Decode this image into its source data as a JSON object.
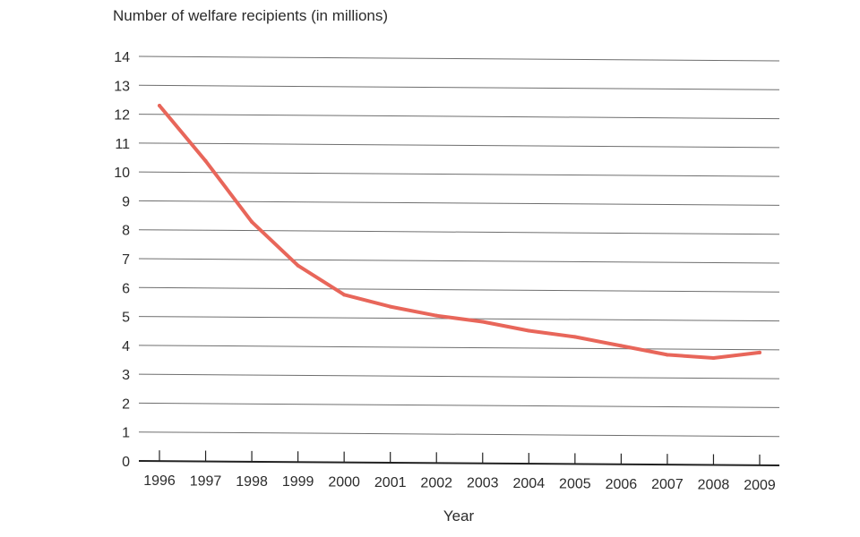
{
  "chart_data": {
    "type": "line",
    "title": "",
    "ylabel": "Number of welfare recipients (in millions)",
    "xlabel": "Year",
    "categories": [
      "1996",
      "1997",
      "1998",
      "1999",
      "2000",
      "2001",
      "2002",
      "2003",
      "2004",
      "2005",
      "2006",
      "2007",
      "2008",
      "2009"
    ],
    "yticks": [
      "0",
      "1",
      "2",
      "3",
      "4",
      "5",
      "6",
      "7",
      "8",
      "9",
      "10",
      "11",
      "12",
      "13",
      "14"
    ],
    "ylim": [
      0,
      14
    ],
    "grid": true,
    "legend": "none",
    "series": [
      {
        "color": "#e8665a",
        "values": [
          12.3,
          10.4,
          8.3,
          6.8,
          5.8,
          5.4,
          5.1,
          4.9,
          4.6,
          4.4,
          4.1,
          3.8,
          3.7,
          3.9
        ]
      }
    ]
  }
}
